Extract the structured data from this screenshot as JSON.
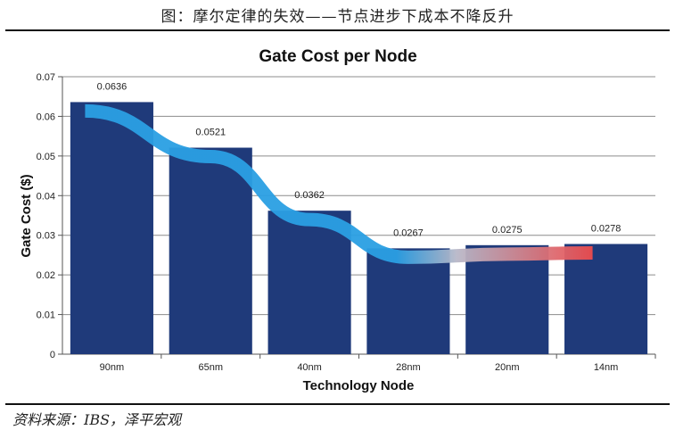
{
  "figure": {
    "caption": "图：摩尔定律的失效——节点进步下成本不降反升",
    "source": "资料来源：IBS，泽平宏观"
  },
  "colors": {
    "bar": "#1F3A7A",
    "gridline": "#8C8C8C",
    "trend_start": "#2A9FE3",
    "trend_end": "#F24040"
  },
  "chart_data": {
    "type": "bar",
    "title": "Gate Cost per Node",
    "xlabel": "Technology Node",
    "ylabel": "Gate Cost ($)",
    "categories": [
      "90nm",
      "65nm",
      "40nm",
      "28nm",
      "20nm",
      "14nm"
    ],
    "values": [
      0.0636,
      0.0521,
      0.0362,
      0.0267,
      0.0275,
      0.0278
    ],
    "data_labels": [
      "0.0636",
      "0.0521",
      "0.0362",
      "0.0267",
      "0.0275",
      "0.0278"
    ],
    "y_ticks": [
      "0",
      "0.01",
      "0.02",
      "0.03",
      "0.04",
      "0.05",
      "0.06",
      "0.07"
    ],
    "ylim": [
      0,
      0.07
    ],
    "grid": true,
    "legend": "none",
    "annotation": "trend arrow gradient from blue (decreasing cost) to red (rising cost)"
  }
}
